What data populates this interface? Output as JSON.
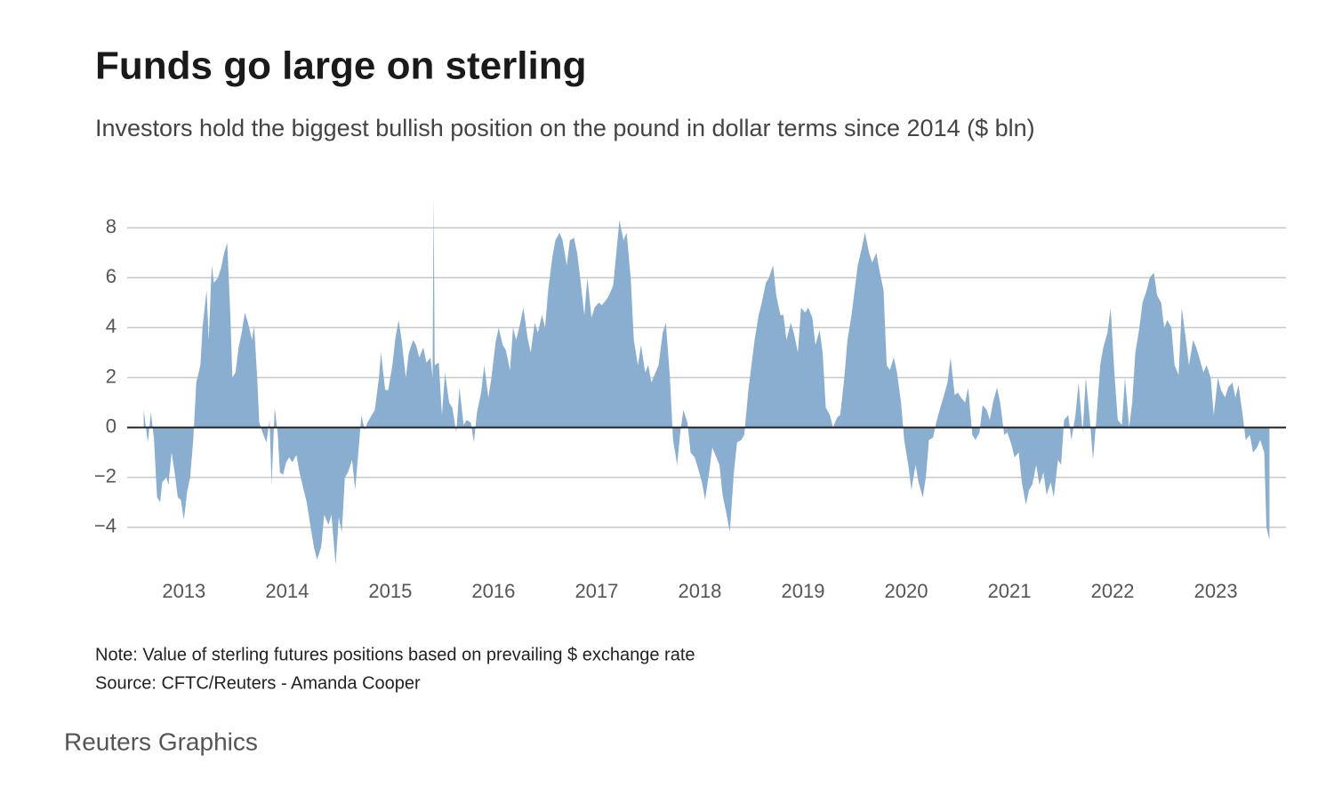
{
  "chart_data": {
    "type": "area",
    "title": "Funds go large on sterling",
    "subtitle": "Investors hold the biggest bullish position on the pound in dollar terms since 2014 ($ bln)",
    "note": "Note: Value of sterling futures positions based on prevailing $ exchange rate",
    "source": "Source: CFTC/Reuters - Amanda Cooper",
    "credit": "Reuters Graphics",
    "color": "#8aaed0",
    "grid": true,
    "xlim": [
      2012.45,
      2023.68
    ],
    "xticks": [
      2013,
      2014,
      2015,
      2016,
      2017,
      2018,
      2019,
      2020,
      2021,
      2022,
      2023
    ],
    "ylim": [
      -6,
      10
    ],
    "yticks": [
      {
        "value": -4,
        "label": "−4"
      },
      {
        "value": -2,
        "label": "−2"
      },
      0,
      2,
      4,
      6,
      8
    ],
    "x": [
      2012.61,
      2012.65,
      2012.68,
      2012.71,
      2012.74,
      2012.77,
      2012.79,
      2012.83,
      2012.85,
      2012.88,
      2012.91,
      2012.94,
      2012.97,
      2013.0,
      2013.03,
      2013.06,
      2013.09,
      2013.12,
      2013.16,
      2013.18,
      2013.22,
      2013.24,
      2013.27,
      2013.29,
      2013.33,
      2013.36,
      2013.39,
      2013.42,
      2013.45,
      2013.47,
      2013.5,
      2013.53,
      2013.56,
      2013.59,
      2013.62,
      2013.66,
      2013.68,
      2013.71,
      2013.73,
      2013.77,
      2013.8,
      2013.83,
      2013.85,
      2013.88,
      2013.91,
      2013.93,
      2013.96,
      2013.99,
      2014.02,
      2014.05,
      2014.09,
      2014.12,
      2014.16,
      2014.19,
      2014.22,
      2014.26,
      2014.29,
      2014.33,
      2014.36,
      2014.4,
      2014.43,
      2014.47,
      2014.5,
      2014.53,
      2014.56,
      2014.59,
      2014.63,
      2014.66,
      2014.7,
      2014.72,
      2014.75,
      2014.78,
      2014.82,
      2014.85,
      2014.89,
      2014.91,
      2014.95,
      2014.98,
      2015.02,
      2015.05,
      2015.08,
      2015.11,
      2015.15,
      2015.18,
      2015.22,
      2015.25,
      2015.28,
      2015.32,
      2015.35,
      2015.39,
      2015.41,
      2015.42,
      2015.43,
      2015.47,
      2015.5,
      2015.53,
      2015.57,
      2015.6,
      2015.64,
      2015.67,
      2015.71,
      2015.74,
      2015.78,
      2015.81,
      2015.84,
      2015.88,
      2015.91,
      2015.95,
      2015.98,
      2016.02,
      2016.05,
      2016.09,
      2016.12,
      2016.16,
      2016.19,
      2016.22,
      2016.26,
      2016.29,
      2016.33,
      2016.36,
      2016.4,
      2016.43,
      2016.47,
      2016.5,
      2016.53,
      2016.57,
      2016.6,
      2016.64,
      2016.67,
      2016.71,
      2016.74,
      2016.78,
      2016.81,
      2016.84,
      2016.88,
      2016.91,
      2016.95,
      2016.98,
      2017.02,
      2017.05,
      2017.09,
      2017.12,
      2017.16,
      2017.19,
      2017.22,
      2017.26,
      2017.29,
      2017.33,
      2017.36,
      2017.4,
      2017.43,
      2017.47,
      2017.5,
      2017.53,
      2017.57,
      2017.6,
      2017.64,
      2017.67,
      2017.71,
      2017.74,
      2017.78,
      2017.81,
      2017.84,
      2017.88,
      2017.91,
      2017.95,
      2017.98,
      2018.02,
      2018.05,
      2018.09,
      2018.12,
      2018.16,
      2018.19,
      2018.22,
      2018.26,
      2018.29,
      2018.33,
      2018.36,
      2018.4,
      2018.43,
      2018.47,
      2018.5,
      2018.53,
      2018.57,
      2018.6,
      2018.64,
      2018.67,
      2018.71,
      2018.74,
      2018.78,
      2018.81,
      2018.84,
      2018.88,
      2018.91,
      2018.95,
      2018.98,
      2019.02,
      2019.05,
      2019.09,
      2019.12,
      2019.16,
      2019.19,
      2019.22,
      2019.26,
      2019.29,
      2019.33,
      2019.36,
      2019.4,
      2019.43,
      2019.47,
      2019.5,
      2019.53,
      2019.57,
      2019.6,
      2019.64,
      2019.67,
      2019.71,
      2019.74,
      2019.78,
      2019.81,
      2019.84,
      2019.88,
      2019.91,
      2019.95,
      2019.98,
      2020.02,
      2020.05,
      2020.09,
      2020.12,
      2020.16,
      2020.19,
      2020.22,
      2020.26,
      2020.29,
      2020.33,
      2020.36,
      2020.4,
      2020.43,
      2020.47,
      2020.5,
      2020.53,
      2020.57,
      2020.6,
      2020.64,
      2020.67,
      2020.71,
      2020.74,
      2020.78,
      2020.81,
      2020.84,
      2020.88,
      2020.91,
      2020.95,
      2020.98,
      2021.02,
      2021.05,
      2021.09,
      2021.12,
      2021.16,
      2021.19,
      2021.22,
      2021.26,
      2021.29,
      2021.33,
      2021.36,
      2021.4,
      2021.43,
      2021.47,
      2021.5,
      2021.53,
      2021.57,
      2021.6,
      2021.64,
      2021.67,
      2021.71,
      2021.74,
      2021.78,
      2021.81,
      2021.84,
      2021.88,
      2021.91,
      2021.95,
      2021.98,
      2022.02,
      2022.05,
      2022.09,
      2022.12,
      2022.16,
      2022.19,
      2022.22,
      2022.26,
      2022.29,
      2022.33,
      2022.36,
      2022.4,
      2022.43,
      2022.47,
      2022.5,
      2022.53,
      2022.57,
      2022.6,
      2022.64,
      2022.67,
      2022.71,
      2022.74,
      2022.78,
      2022.81,
      2022.84,
      2022.88,
      2022.91,
      2022.95,
      2022.98,
      2023.02,
      2023.05,
      2023.09,
      2023.12,
      2023.16,
      2023.19,
      2023.22,
      2023.26,
      2023.29,
      2023.33,
      2023.36,
      2023.4,
      2023.43,
      2023.47,
      2023.49,
      2023.52
    ],
    "values": [
      0.7,
      -0.6,
      0.6,
      -0.5,
      -2.8,
      -3.0,
      -2.2,
      -2.0,
      -2.3,
      -1.0,
      -1.8,
      -2.8,
      -2.9,
      -3.7,
      -2.6,
      -2.0,
      -0.5,
      1.8,
      2.5,
      4.0,
      5.5,
      3.5,
      6.5,
      5.8,
      6.0,
      6.4,
      7.0,
      7.4,
      4.5,
      2.0,
      2.2,
      3.2,
      3.8,
      4.6,
      4.2,
      3.5,
      4.1,
      2.0,
      0.2,
      -0.3,
      -0.6,
      0.3,
      -2.3,
      0.8,
      -0.3,
      -1.8,
      -1.9,
      -1.4,
      -1.2,
      -1.4,
      -1.1,
      -1.8,
      -2.5,
      -3.0,
      -3.8,
      -4.8,
      -5.3,
      -4.8,
      -3.5,
      -3.9,
      -3.5,
      -5.5,
      -3.6,
      -4.2,
      -2.0,
      -1.8,
      -1.3,
      -2.5,
      -0.5,
      0.5,
      -0.1,
      0.2,
      0.5,
      0.7,
      2.0,
      3.0,
      1.5,
      1.5,
      2.5,
      3.6,
      4.3,
      3.5,
      2.0,
      3.0,
      3.5,
      3.3,
      2.8,
      3.2,
      2.6,
      2.8,
      2.0,
      9.3,
      2.5,
      2.6,
      0.5,
      2.2,
      1.0,
      0.8,
      -0.2,
      1.6,
      0.1,
      0.3,
      0.2,
      -0.6,
      0.6,
      1.4,
      2.5,
      1.2,
      2.0,
      3.4,
      4.0,
      3.3,
      3.1,
      2.3,
      4.0,
      3.5,
      4.2,
      4.8,
      3.6,
      3.0,
      4.2,
      3.8,
      4.5,
      4.0,
      5.5,
      6.8,
      7.5,
      7.8,
      7.5,
      6.5,
      7.5,
      7.6,
      7.0,
      6.0,
      4.5,
      6.0,
      4.4,
      4.8,
      5.0,
      4.9,
      5.1,
      5.3,
      5.7,
      7.0,
      8.3,
      7.5,
      7.8,
      6.0,
      3.5,
      2.5,
      3.3,
      2.2,
      2.5,
      1.8,
      2.2,
      2.5,
      3.8,
      4.2,
      2.0,
      -0.5,
      -1.5,
      -0.2,
      0.7,
      0.2,
      -1.0,
      -1.2,
      -1.6,
      -2.2,
      -2.9,
      -1.8,
      -0.8,
      -1.2,
      -1.5,
      -2.7,
      -3.5,
      -4.2,
      -1.8,
      -0.6,
      -0.5,
      -0.3,
      1.5,
      2.5,
      3.5,
      4.5,
      5.0,
      5.8,
      6.0,
      6.5,
      5.3,
      4.5,
      4.5,
      3.5,
      4.2,
      3.8,
      3.0,
      4.8,
      4.6,
      4.8,
      4.4,
      3.3,
      3.9,
      3.0,
      0.8,
      0.5,
      0.0,
      0.4,
      0.5,
      2.0,
      3.5,
      4.5,
      5.5,
      6.5,
      7.2,
      7.8,
      7.0,
      6.6,
      7.0,
      6.3,
      5.5,
      2.5,
      2.3,
      2.8,
      2.2,
      1.0,
      -0.5,
      -1.5,
      -2.5,
      -1.5,
      -2.2,
      -2.8,
      -2.0,
      -0.5,
      -0.4,
      0.2,
      0.8,
      1.2,
      1.8,
      2.8,
      1.3,
      1.4,
      1.2,
      1.0,
      1.6,
      -0.3,
      -0.5,
      -0.2,
      0.9,
      0.7,
      0.3,
      1.0,
      1.6,
      1.0,
      -0.3,
      -0.2,
      -0.7,
      -1.2,
      -1.0,
      -2.2,
      -3.1,
      -2.5,
      -2.3,
      -1.5,
      -2.3,
      -1.8,
      -2.7,
      -2.2,
      -2.8,
      -1.3,
      -1.5,
      0.3,
      0.5,
      -0.5,
      0.5,
      1.8,
      -0.2,
      2.0,
      0.3,
      -1.3,
      0.2,
      2.5,
      3.2,
      3.8,
      4.8,
      2.0,
      0.3,
      0.1,
      2.0,
      0.0,
      1.0,
      3.0,
      4.0,
      5.0,
      5.5,
      6.0,
      6.2,
      5.3,
      5.0,
      4.0,
      4.3,
      4.0,
      2.5,
      2.1,
      4.8,
      3.5,
      2.5,
      3.5,
      3.2,
      2.8,
      2.2,
      2.5,
      2.0,
      0.5,
      2.0,
      1.5,
      1.2,
      1.6,
      1.8,
      1.2,
      1.7,
      0.5,
      -0.5,
      -0.3,
      -1.0,
      -0.8,
      -0.5,
      -1.0,
      -4.0,
      -4.5
    ]
  }
}
